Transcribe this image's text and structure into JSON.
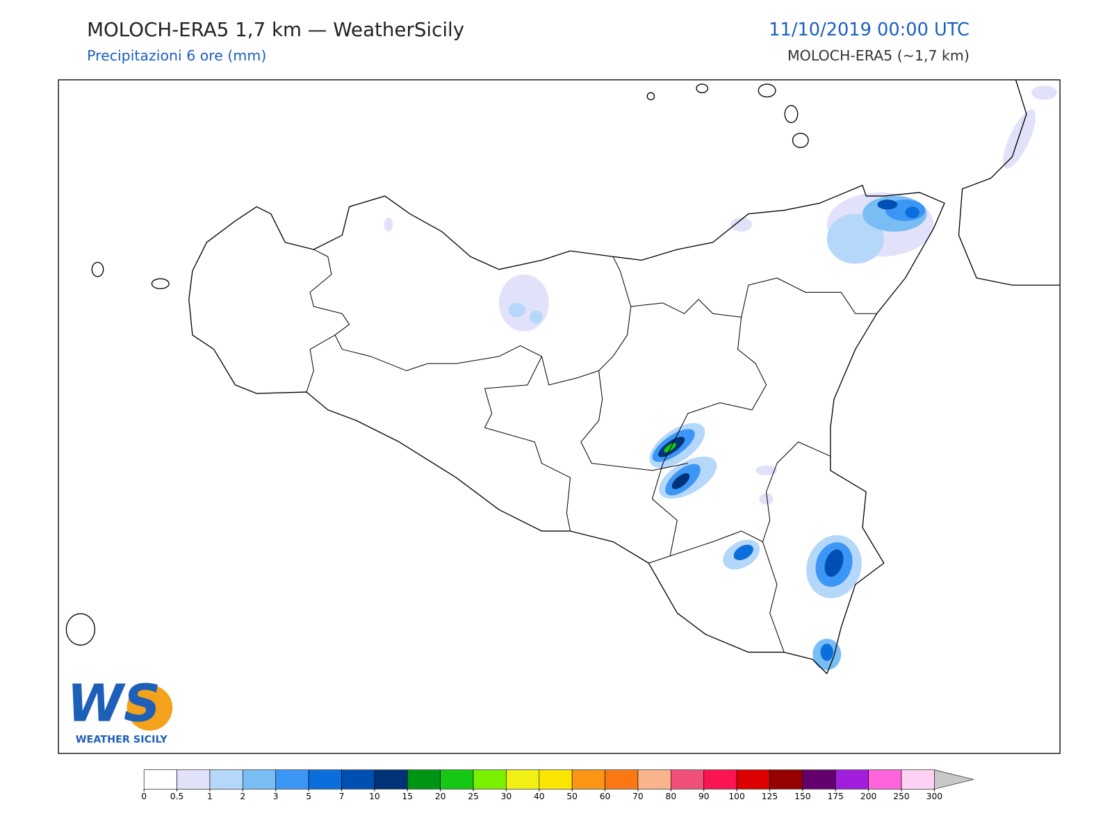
{
  "header": {
    "title": "MOLOCH-ERA5 1,7 km — WeatherSicily",
    "subtitle": "Precipitazioni 6 ore (mm)",
    "datetime": "11/10/2019 00:00 UTC",
    "model": "MOLOCH-ERA5 (~1,7 km)"
  },
  "logo": {
    "mark": "WS",
    "text": "WEATHER SICILY"
  },
  "colorbar": {
    "ticks": [
      0,
      0.5,
      1,
      2,
      3,
      5,
      7,
      10,
      15,
      20,
      25,
      30,
      40,
      50,
      60,
      70,
      80,
      90,
      100,
      125,
      150,
      175,
      200,
      250,
      300
    ],
    "colors": [
      "#ffffff",
      "#e1e1fa",
      "#b4d7fa",
      "#78bef5",
      "#3c96f5",
      "#0a6edc",
      "#0050b4",
      "#003278",
      "#009614",
      "#14c814",
      "#78f000",
      "#f0f014",
      "#fae600",
      "#fa9614",
      "#fa7814",
      "#fab48c",
      "#f05078",
      "#fa1450",
      "#dc0000",
      "#960000",
      "#64006e",
      "#a01edc",
      "#ff64dc",
      "#ffd2f5"
    ],
    "extend_color": "#c8c8c8"
  }
}
